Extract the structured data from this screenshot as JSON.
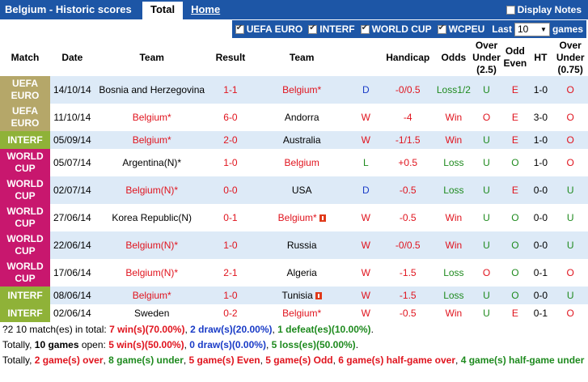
{
  "header": {
    "title": "Belgium - Historic scores",
    "tab_total": "Total",
    "tab_home": "Home",
    "display_notes": "Display Notes"
  },
  "filters": {
    "euro": "UEFA EURO",
    "interf": "INTERF",
    "worldcup": "WORLD CUP",
    "wcpeu": "WCPEU",
    "last_label": "Last",
    "last_value": "10",
    "games_label": "games"
  },
  "columns": {
    "match": "Match",
    "date": "Date",
    "team1": "Team",
    "result": "Result",
    "team2": "Team",
    "handicap": "Handicap",
    "odds": "Odds",
    "over_under": "Over Under (2.5)",
    "odd_even": "Odd Even",
    "ht": "HT",
    "over_under_ht": "Over Under (0.75)"
  },
  "rows": [
    {
      "comp": "UEFA EURO",
      "cls": "euro",
      "date": "14/10/14",
      "home": "Bosnia and Herzegovina",
      "home_belgium": false,
      "score": "1-1",
      "away": "Belgium*",
      "away_belgium": true,
      "hda": "D",
      "hcap": "-0/0.5",
      "odds": "Loss1/2",
      "ou": "U",
      "oe": "E",
      "ht": "1-0",
      "ou2": "O",
      "away_flag": false,
      "home_flag": false
    },
    {
      "comp": "UEFA EURO",
      "cls": "euro",
      "date": "11/10/14",
      "home": "Belgium*",
      "home_belgium": true,
      "score": "6-0",
      "away": "Andorra",
      "away_belgium": false,
      "hda": "W",
      "hcap": "-4",
      "odds": "Win",
      "ou": "O",
      "oe": "E",
      "ht": "3-0",
      "ou2": "O",
      "away_flag": false,
      "home_flag": false
    },
    {
      "comp": "INTERF",
      "cls": "interf",
      "date": "05/09/14",
      "home": "Belgium*",
      "home_belgium": true,
      "score": "2-0",
      "away": "Australia",
      "away_belgium": false,
      "hda": "W",
      "hcap": "-1/1.5",
      "odds": "Win",
      "ou": "U",
      "oe": "E",
      "ht": "1-0",
      "ou2": "O",
      "away_flag": false,
      "home_flag": false
    },
    {
      "comp": "WORLD CUP",
      "cls": "wc",
      "date": "05/07/14",
      "home": "Argentina(N)*",
      "home_belgium": false,
      "score": "1-0",
      "away": "Belgium",
      "away_belgium": true,
      "hda": "L",
      "hcap": "+0.5",
      "odds": "Loss",
      "ou": "U",
      "oe": "O",
      "ht": "1-0",
      "ou2": "O",
      "away_flag": false,
      "home_flag": false
    },
    {
      "comp": "WORLD CUP",
      "cls": "wc",
      "date": "02/07/14",
      "home": "Belgium(N)*",
      "home_belgium": true,
      "score": "0-0",
      "away": "USA",
      "away_belgium": false,
      "hda": "D",
      "hcap": "-0.5",
      "odds": "Loss",
      "ou": "U",
      "oe": "E",
      "ht": "0-0",
      "ou2": "U",
      "away_flag": false,
      "home_flag": false
    },
    {
      "comp": "WORLD CUP",
      "cls": "wc",
      "date": "27/06/14",
      "home": "Korea Republic(N)",
      "home_belgium": false,
      "score": "0-1",
      "away": "Belgium*",
      "away_belgium": true,
      "hda": "W",
      "hcap": "-0.5",
      "odds": "Win",
      "ou": "U",
      "oe": "O",
      "ht": "0-0",
      "ou2": "U",
      "away_flag": true,
      "home_flag": false
    },
    {
      "comp": "WORLD CUP",
      "cls": "wc",
      "date": "22/06/14",
      "home": "Belgium(N)*",
      "home_belgium": true,
      "score": "1-0",
      "away": "Russia",
      "away_belgium": false,
      "hda": "W",
      "hcap": "-0/0.5",
      "odds": "Win",
      "ou": "U",
      "oe": "O",
      "ht": "0-0",
      "ou2": "U",
      "away_flag": false,
      "home_flag": false
    },
    {
      "comp": "WORLD CUP",
      "cls": "wc",
      "date": "17/06/14",
      "home": "Belgium(N)*",
      "home_belgium": true,
      "score": "2-1",
      "away": "Algeria",
      "away_belgium": false,
      "hda": "W",
      "hcap": "-1.5",
      "odds": "Loss",
      "ou": "O",
      "oe": "O",
      "ht": "0-1",
      "ou2": "O",
      "away_flag": false,
      "home_flag": false
    },
    {
      "comp": "INTERF",
      "cls": "interf",
      "date": "08/06/14",
      "home": "Belgium*",
      "home_belgium": true,
      "score": "1-0",
      "away": "Tunisia",
      "away_belgium": false,
      "hda": "W",
      "hcap": "-1.5",
      "odds": "Loss",
      "ou": "U",
      "oe": "O",
      "ht": "0-0",
      "ou2": "U",
      "away_flag": true,
      "home_flag": false
    },
    {
      "comp": "INTERF",
      "cls": "interf",
      "date": "02/06/14",
      "home": "Sweden",
      "home_belgium": false,
      "score": "0-2",
      "away": "Belgium*",
      "away_belgium": true,
      "hda": "W",
      "hcap": "-0.5",
      "odds": "Win",
      "ou": "U",
      "oe": "E",
      "ht": "0-1",
      "ou2": "O",
      "away_flag": false,
      "home_flag": false
    }
  ],
  "summary": {
    "line1": {
      "prefix": "?2 10 match(es) in total: ",
      "wins": "7 win(s)(70.00%)",
      "sep1": ", ",
      "draws": "2 draw(s)(20.00%)",
      "sep2": ", ",
      "defeats": "1 defeat(es)(10.00%)",
      "suffix": "."
    },
    "line2": {
      "prefix": "Totally, ",
      "games": "10 games",
      "mid1": " open: ",
      "wins": "5 win(s)(50.00%)",
      "mid2": ", ",
      "draws": "0 draw(s)(0.00%)",
      "mid3": ", ",
      "losses": "5 loss(es)(50.00%)",
      "suffix": "."
    },
    "line3": {
      "prefix": "Totally, ",
      "over": "2 game(s) over",
      "s1": ", ",
      "under": "8 game(s) under",
      "s2": ", ",
      "even": "5 game(s) Even",
      "s3": ", ",
      "odd": "5 game(s) Odd",
      "s4": ", ",
      "hover": "6 game(s) half-game over",
      "s5": ", ",
      "hunder": "4 game(s) half-game under"
    }
  }
}
